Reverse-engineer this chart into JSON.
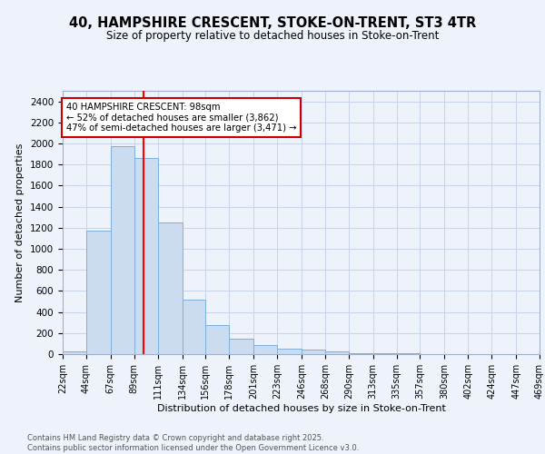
{
  "title": "40, HAMPSHIRE CRESCENT, STOKE-ON-TRENT, ST3 4TR",
  "subtitle": "Size of property relative to detached houses in Stoke-on-Trent",
  "xlabel": "Distribution of detached houses by size in Stoke-on-Trent",
  "ylabel": "Number of detached properties",
  "bar_edges": [
    22,
    44,
    67,
    89,
    111,
    134,
    156,
    178,
    201,
    223,
    246,
    268,
    290,
    313,
    335,
    357,
    380,
    402,
    424,
    447,
    469
  ],
  "bar_heights": [
    25,
    1175,
    1975,
    1860,
    1250,
    520,
    275,
    150,
    85,
    48,
    40,
    30,
    12,
    8,
    5,
    4,
    2,
    1,
    1,
    0
  ],
  "bar_color": "#ccdcf0",
  "bar_edge_color": "#7aafdc",
  "red_line_x": 98,
  "annotation_text": "40 HAMPSHIRE CRESCENT: 98sqm\n← 52% of detached houses are smaller (3,862)\n47% of semi-detached houses are larger (3,471) →",
  "annotation_box_color": "#ffffff",
  "annotation_border_color": "#cc0000",
  "ylim": [
    0,
    2500
  ],
  "yticks": [
    0,
    200,
    400,
    600,
    800,
    1000,
    1200,
    1400,
    1600,
    1800,
    2000,
    2200,
    2400
  ],
  "tick_labels": [
    "22sqm",
    "44sqm",
    "67sqm",
    "89sqm",
    "111sqm",
    "134sqm",
    "156sqm",
    "178sqm",
    "201sqm",
    "223sqm",
    "246sqm",
    "268sqm",
    "290sqm",
    "313sqm",
    "335sqm",
    "357sqm",
    "380sqm",
    "402sqm",
    "424sqm",
    "447sqm",
    "469sqm"
  ],
  "footer_text": "Contains HM Land Registry data © Crown copyright and database right 2025.\nContains public sector information licensed under the Open Government Licence v3.0.",
  "background_color": "#eef2fa",
  "grid_color": "#c8d4ec"
}
